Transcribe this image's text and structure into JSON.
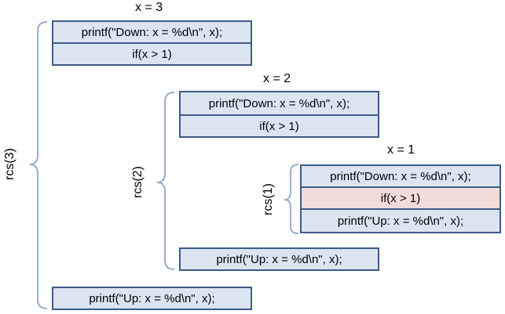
{
  "frames": [
    {
      "call": "rcs(3)",
      "x_label": "x = 3",
      "statements": [
        "printf(\"Down: x = %d\\n\", x);",
        "if(x > 1)",
        "printf(\"Up: x = %d\\n\", x);"
      ]
    },
    {
      "call": "rcs(2)",
      "x_label": "x = 2",
      "statements": [
        "printf(\"Down: x = %d\\n\", x);",
        "if(x > 1)",
        "printf(\"Up: x = %d\\n\", x);"
      ]
    },
    {
      "call": "rcs(1)",
      "x_label": "x = 1",
      "statements": [
        "printf(\"Down: x = %d\\n\", x);",
        "if(x > 1)",
        "printf(\"Up: x = %d\\n\", x);"
      ]
    }
  ],
  "colors": {
    "box_fill": "#dbe5f2",
    "box_border": "#3d5b86",
    "highlight_fill": "#f2dcdb",
    "brace": "#9aaecb"
  }
}
